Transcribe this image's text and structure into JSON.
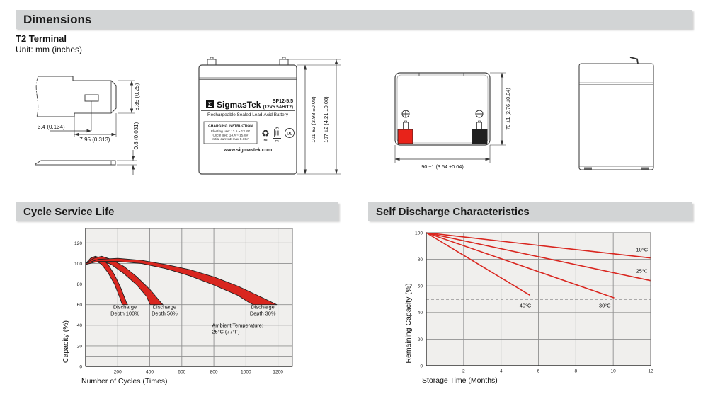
{
  "header": {
    "title": "Dimensions",
    "terminal_type": "T2 Terminal",
    "unit_note": "Unit: mm (inches)"
  },
  "sections": {
    "cycle_title": "Cycle Service Life",
    "self_discharge_title": "Self Discharge Characteristics"
  },
  "terminal_drawing": {
    "dim_blade_height": "6.35 (0.25)",
    "dim_hole_offset": "3.4 (0.134)",
    "dim_blade_width": "7.95 (0.313)",
    "dim_thickness": "0.8 (0.031)"
  },
  "front_view": {
    "sigma": "Σ",
    "brand": "SigmasTek",
    "model": "SP12-5.5",
    "rating": "(12V5.5AH/T2)",
    "type_line": "Rechargeable Sealed Lead-Acid Battery",
    "charging_title": "CHARGING INSTRUCTION",
    "charging_line1": "Floating use: 13.5 ~ 13.8V",
    "charging_line2": "Cycle use: 14.4 ~ 15.0V",
    "charging_line3": "Initial current: max 0.3CA",
    "recycle_pb": "Pb",
    "bin_pb": "Pb",
    "ul_mark": "UL",
    "website": "www.sigmastek.com",
    "dim_case_height": "101 ±2 (3.98 ±0.08)",
    "dim_total_height": "107 ±2 (4.21 ±0.08)"
  },
  "top_view": {
    "dim_depth": "70 ±1 (2.76 ±0.04)",
    "dim_width": "90 ±1 (3.54 ±0.04)"
  },
  "colors": {
    "accent_red": "#d9261f",
    "positive_terminal": "#e8231a",
    "negative_terminal": "#1f1f1f",
    "header_bar": "#d2d4d5",
    "plot_bg": "#f0efed",
    "grid": "#909090"
  },
  "chart_data": [
    {
      "type": "area",
      "title": "Cycle Service Life",
      "xlabel": "Number of Cycles (Times)",
      "ylabel": "Capacity (%)",
      "xlim": [
        0,
        1290
      ],
      "ylim": [
        0,
        134
      ],
      "xticks": [
        200,
        400,
        600,
        800,
        1000,
        1200
      ],
      "yticks": [
        0,
        20,
        40,
        60,
        80,
        100,
        120
      ],
      "minor_y": [
        10
      ],
      "grid": true,
      "bands": [
        {
          "name": "Discharge Depth 100%",
          "upper": [
            [
              0,
              100
            ],
            [
              30,
              105
            ],
            [
              60,
              107
            ],
            [
              100,
              105
            ],
            [
              140,
              99
            ],
            [
              180,
              89
            ],
            [
              220,
              76
            ],
            [
              255,
              62
            ],
            [
              262,
              60
            ]
          ],
          "lower": [
            [
              0,
              99
            ],
            [
              30,
              102
            ],
            [
              60,
              103
            ],
            [
              100,
              99
            ],
            [
              140,
              91
            ],
            [
              180,
              80
            ],
            [
              215,
              66
            ],
            [
              228,
              60
            ]
          ]
        },
        {
          "name": "Discharge Depth 50%",
          "upper": [
            [
              0,
              100
            ],
            [
              50,
              105
            ],
            [
              100,
              107
            ],
            [
              160,
              104
            ],
            [
              240,
              97
            ],
            [
              320,
              87
            ],
            [
              400,
              75
            ],
            [
              470,
              62
            ],
            [
              482,
              60
            ]
          ],
          "lower": [
            [
              0,
              99
            ],
            [
              50,
              102
            ],
            [
              100,
              103
            ],
            [
              160,
              99
            ],
            [
              240,
              90
            ],
            [
              320,
              79
            ],
            [
              380,
              68
            ],
            [
              402,
              60
            ]
          ]
        },
        {
          "name": "Discharge Depth 30%",
          "upper": [
            [
              0,
              100
            ],
            [
              80,
              104
            ],
            [
              200,
              105
            ],
            [
              350,
              103
            ],
            [
              500,
              99
            ],
            [
              650,
              94
            ],
            [
              800,
              87
            ],
            [
              950,
              78
            ],
            [
              1100,
              67
            ],
            [
              1192,
              60
            ]
          ],
          "lower": [
            [
              0,
              99
            ],
            [
              80,
              102
            ],
            [
              200,
              102
            ],
            [
              350,
              100
            ],
            [
              500,
              95
            ],
            [
              650,
              88
            ],
            [
              800,
              79
            ],
            [
              950,
              69
            ],
            [
              1020,
              62
            ],
            [
              1045,
              60
            ]
          ]
        }
      ],
      "annotations": [
        {
          "lines": [
            "Discharge",
            "Depth 100%"
          ],
          "x": 245,
          "y": 56,
          "anchor": "middle"
        },
        {
          "lines": [
            "Discharge",
            "Depth 50%"
          ],
          "x": 492,
          "y": 56,
          "anchor": "middle"
        },
        {
          "lines": [
            "Discharge",
            "Depth 30%"
          ],
          "x": 1105,
          "y": 56,
          "anchor": "middle"
        },
        {
          "lines": [
            "Ambient Temperature:",
            "25°C (77°F)"
          ],
          "x": 788,
          "y": 38,
          "anchor": "start"
        }
      ]
    },
    {
      "type": "line",
      "title": "Self Discharge Characteristics",
      "xlabel": "Storage Time (Months)",
      "ylabel": "Remaining Capacity (%)",
      "xlim": [
        0,
        12
      ],
      "ylim": [
        0,
        100
      ],
      "xticks": [
        2,
        4,
        6,
        8,
        10,
        12
      ],
      "yticks": [
        0,
        20,
        40,
        60,
        80,
        100
      ],
      "dashed_y": 50,
      "grid": true,
      "series": [
        {
          "name": "10°C",
          "points": [
            [
              0,
              100
            ],
            [
              12,
              81
            ]
          ],
          "label_x": 11.85,
          "label_y": 86,
          "anchor": "end"
        },
        {
          "name": "25°C",
          "points": [
            [
              0,
              100
            ],
            [
              12,
              64
            ]
          ],
          "label_x": 11.85,
          "label_y": 70,
          "anchor": "end"
        },
        {
          "name": "30°C",
          "points": [
            [
              0,
              100
            ],
            [
              10.05,
              51
            ]
          ],
          "label_x": 9.55,
          "label_y": 44,
          "anchor": "middle"
        },
        {
          "name": "40°C",
          "points": [
            [
              0,
              100
            ],
            [
              5.55,
              53
            ]
          ],
          "label_x": 5.3,
          "label_y": 44,
          "anchor": "middle"
        }
      ]
    }
  ]
}
